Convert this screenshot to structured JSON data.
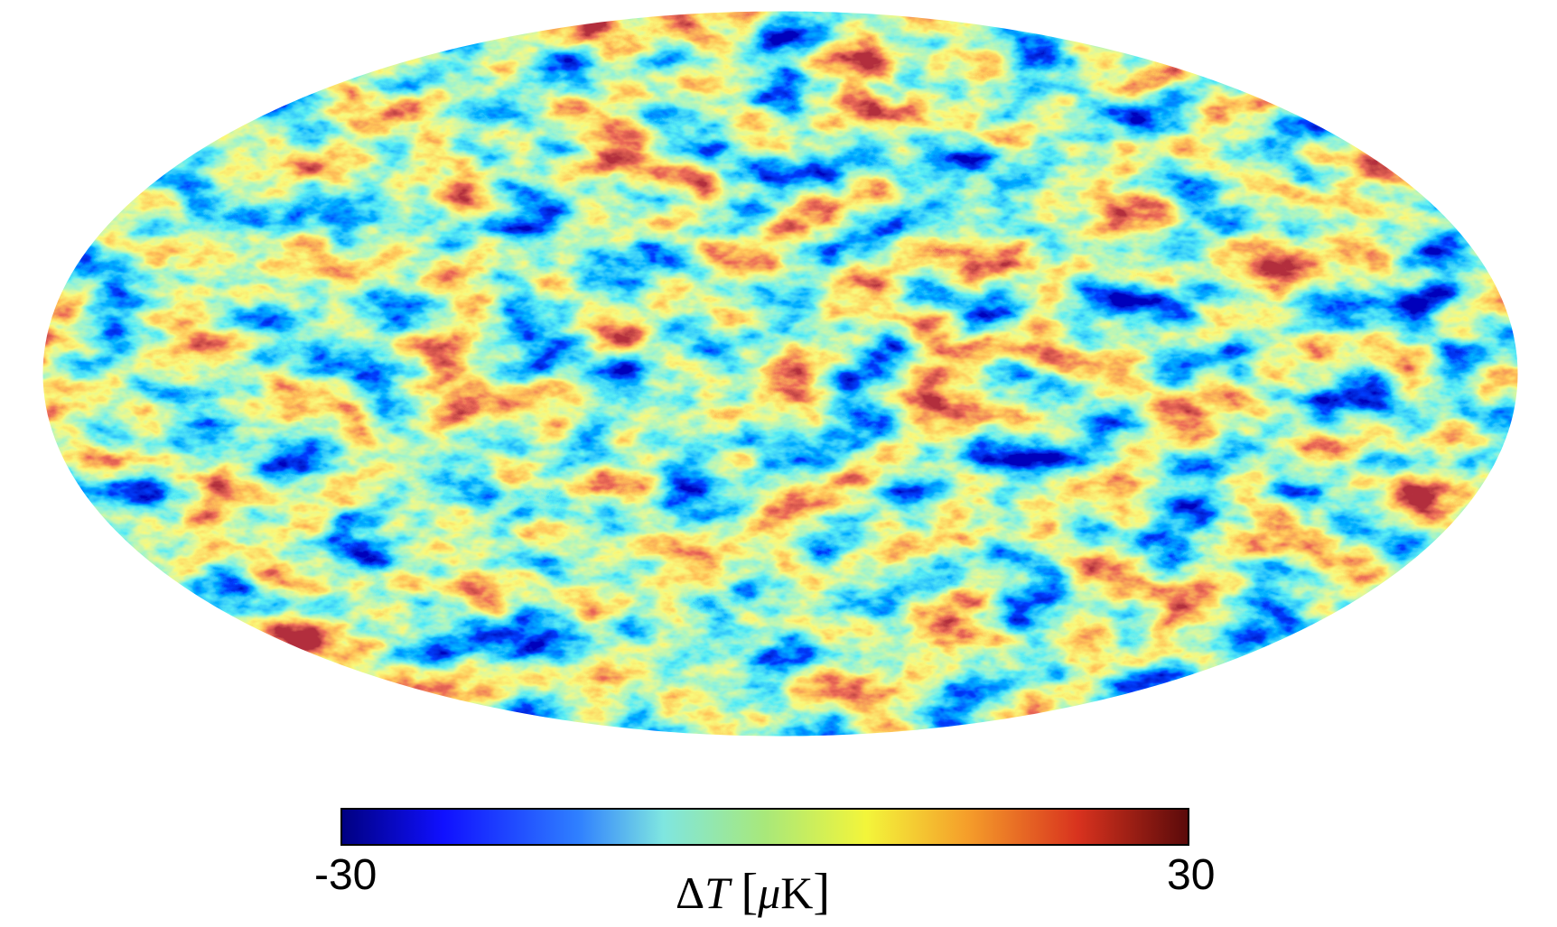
{
  "colorbar": {
    "min_label": "-30",
    "max_label": "30",
    "unit_label": {
      "delta": "Δ",
      "symbol": "T",
      "open_bracket": "[",
      "prefix": "μ",
      "unit": "K",
      "close_bracket": "]"
    },
    "range": [
      -30,
      30
    ],
    "colormap": [
      "#000080",
      "#1010ff",
      "#2f80ff",
      "#7fe6e0",
      "#a8e87a",
      "#f3f53a",
      "#f59d2a",
      "#d8321e",
      "#5a0a0a"
    ]
  },
  "map": {
    "projection": "mollweide",
    "hot_color": "#e8461f",
    "cold_color": "#1e3cff",
    "mid_color": "#5fe0b4"
  }
}
